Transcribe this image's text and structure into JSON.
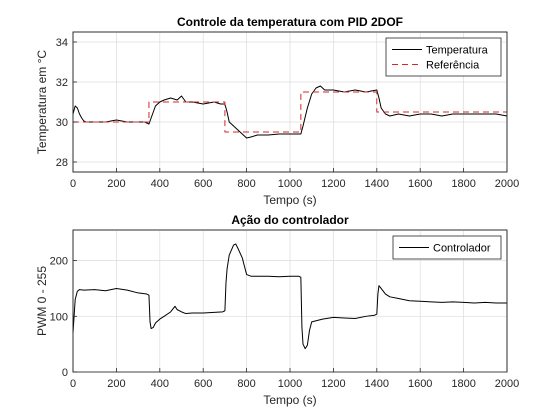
{
  "figure": {
    "background": "#ffffff"
  },
  "chart_data": [
    {
      "type": "line",
      "title": "Controle da temperatura com PID 2DOF",
      "xlabel": "Tempo (s)",
      "ylabel": "Temperatura em °C",
      "xlim": [
        0,
        2000
      ],
      "ylim": [
        27.5,
        34.5
      ],
      "xticks": [
        0,
        200,
        400,
        600,
        800,
        1000,
        1200,
        1400,
        1600,
        1800,
        2000
      ],
      "yticks": [
        28,
        30,
        32,
        34
      ],
      "grid": true,
      "legend": "top-right",
      "series": [
        {
          "name": "Temperatura",
          "color": "#000000",
          "style": "solid",
          "x": [
            0,
            10,
            20,
            30,
            40,
            50,
            60,
            80,
            100,
            150,
            200,
            250,
            300,
            330,
            350,
            360,
            380,
            400,
            420,
            450,
            480,
            500,
            520,
            550,
            600,
            650,
            680,
            700,
            710,
            720,
            740,
            760,
            780,
            800,
            820,
            850,
            880,
            900,
            950,
            1000,
            1040,
            1050,
            1060,
            1080,
            1100,
            1120,
            1140,
            1160,
            1200,
            1250,
            1300,
            1350,
            1400,
            1410,
            1420,
            1440,
            1460,
            1500,
            1550,
            1600,
            1650,
            1700,
            1750,
            1800,
            1850,
            1900,
            1950,
            2000
          ],
          "y": [
            30.4,
            30.8,
            30.7,
            30.4,
            30.2,
            30.05,
            30.0,
            30.0,
            30.0,
            30.0,
            30.1,
            30.0,
            30.0,
            30.0,
            29.9,
            30.2,
            30.8,
            31.0,
            31.1,
            31.2,
            31.1,
            31.3,
            31.0,
            31.0,
            30.9,
            31.0,
            30.9,
            30.9,
            30.5,
            30.0,
            29.8,
            29.6,
            29.4,
            29.2,
            29.25,
            29.35,
            29.35,
            29.35,
            29.4,
            29.4,
            29.4,
            29.4,
            29.8,
            30.7,
            31.4,
            31.7,
            31.8,
            31.6,
            31.6,
            31.5,
            31.6,
            31.5,
            31.6,
            31.2,
            30.7,
            30.4,
            30.3,
            30.4,
            30.3,
            30.4,
            30.4,
            30.3,
            30.4,
            30.4,
            30.4,
            30.4,
            30.4,
            30.3
          ]
        },
        {
          "name": "Referência",
          "color": "#d62728",
          "style": "dashed",
          "x": [
            0,
            350,
            350,
            700,
            700,
            1050,
            1050,
            1400,
            1400,
            2000
          ],
          "y": [
            30,
            30,
            31,
            31,
            29.5,
            29.5,
            31.5,
            31.5,
            30.5,
            30.5
          ]
        }
      ]
    },
    {
      "type": "line",
      "title": "Ação do controlador",
      "xlabel": "Tempo (s)",
      "ylabel": "PWM 0 - 255",
      "xlim": [
        0,
        2000
      ],
      "ylim": [
        0,
        255
      ],
      "xticks": [
        0,
        200,
        400,
        600,
        800,
        1000,
        1200,
        1400,
        1600,
        1800,
        2000
      ],
      "yticks": [
        0,
        100,
        200
      ],
      "grid": true,
      "legend": "top-right",
      "series": [
        {
          "name": "Controlador",
          "color": "#000000",
          "style": "solid",
          "x": [
            0,
            5,
            10,
            20,
            30,
            50,
            100,
            150,
            200,
            250,
            300,
            340,
            350,
            355,
            360,
            370,
            380,
            400,
            420,
            450,
            470,
            480,
            500,
            520,
            550,
            600,
            650,
            690,
            700,
            705,
            710,
            720,
            740,
            750,
            760,
            780,
            800,
            820,
            850,
            900,
            950,
            1000,
            1040,
            1050,
            1055,
            1060,
            1070,
            1080,
            1090,
            1100,
            1150,
            1200,
            1250,
            1300,
            1350,
            1390,
            1400,
            1405,
            1410,
            1420,
            1440,
            1460,
            1500,
            1550,
            1600,
            1650,
            1700,
            1750,
            1800,
            1850,
            1900,
            1950,
            2000
          ],
          "y": [
            70,
            100,
            130,
            145,
            148,
            147,
            148,
            146,
            150,
            147,
            142,
            140,
            138,
            90,
            78,
            80,
            88,
            95,
            100,
            108,
            118,
            112,
            108,
            105,
            106,
            106,
            107,
            108,
            110,
            160,
            185,
            210,
            228,
            230,
            222,
            205,
            175,
            172,
            172,
            172,
            171,
            172,
            172,
            170,
            80,
            50,
            42,
            48,
            75,
            90,
            95,
            98,
            97,
            96,
            100,
            102,
            104,
            140,
            155,
            150,
            140,
            135,
            132,
            128,
            127,
            126,
            125,
            126,
            125,
            124,
            125,
            124,
            124
          ]
        }
      ]
    }
  ]
}
